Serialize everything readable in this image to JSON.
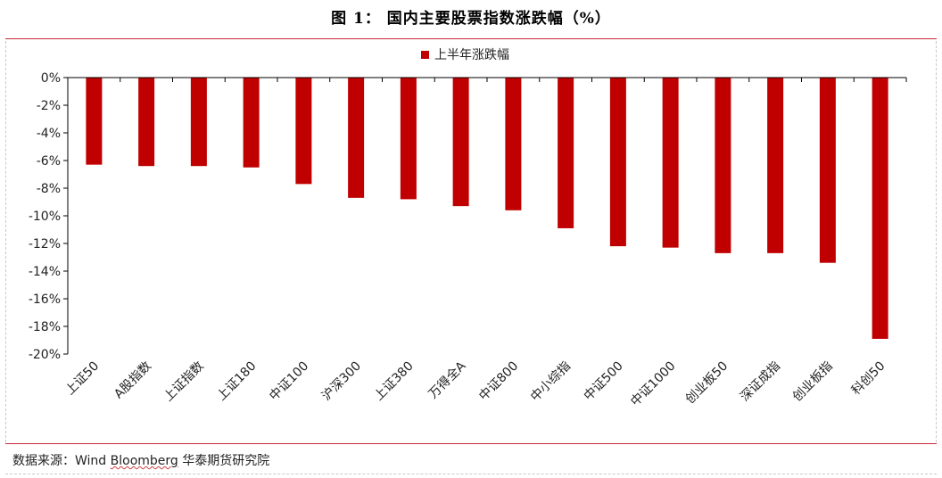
{
  "header": {
    "title": "图 1：  国内主要股票指数涨跌幅（%）"
  },
  "footer": {
    "source_prefix": "数据来源：Wind ",
    "source_underlined": "Bloomberg",
    "source_suffix": " 华泰期货研究院"
  },
  "colors": {
    "bar": "#c00000",
    "rule": "#c62a3a"
  },
  "chart_data": {
    "type": "bar",
    "title": "",
    "xlabel": "",
    "ylabel": "",
    "legend_position": "top-center",
    "ylim": [
      -20,
      0
    ],
    "ytick_step": 2,
    "ytick_suffix": "%",
    "grid": false,
    "categories": [
      "上证50",
      "A股指数",
      "上证指数",
      "上证180",
      "中证100",
      "沪深300",
      "上证380",
      "万得全A",
      "中证800",
      "中小综指",
      "中证500",
      "中证1000",
      "创业板50",
      "深证成指",
      "创业板指",
      "科创50"
    ],
    "series": [
      {
        "name": "上半年涨跌幅",
        "values": [
          -6.3,
          -6.4,
          -6.4,
          -6.5,
          -7.7,
          -8.7,
          -8.8,
          -9.3,
          -9.6,
          -10.9,
          -12.2,
          -12.3,
          -12.7,
          -12.7,
          -13.4,
          -18.9
        ]
      }
    ]
  }
}
